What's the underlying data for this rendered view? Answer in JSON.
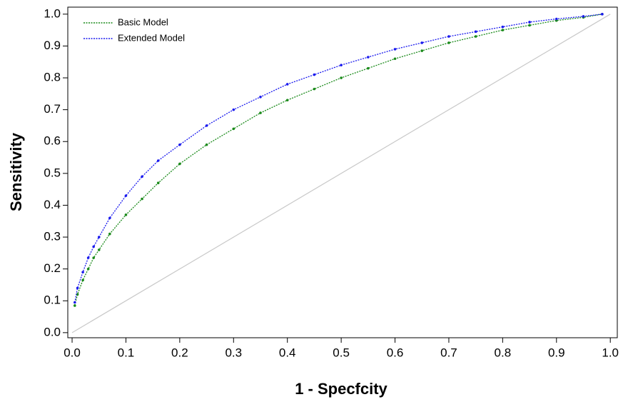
{
  "chart_data": {
    "type": "line",
    "x_label": "1 - Specfcity",
    "y_label": "Sensitivity",
    "x": [
      0.005,
      0.01,
      0.02,
      0.03,
      0.04,
      0.05,
      0.07,
      0.1,
      0.13,
      0.16,
      0.2,
      0.25,
      0.3,
      0.35,
      0.4,
      0.45,
      0.5,
      0.55,
      0.6,
      0.65,
      0.7,
      0.75,
      0.8,
      0.85,
      0.9,
      0.95,
      0.985
    ],
    "series": [
      {
        "name": "Basic Model",
        "color": "#1a8a1a",
        "values": [
          0.085,
          0.12,
          0.165,
          0.2,
          0.235,
          0.26,
          0.31,
          0.37,
          0.42,
          0.47,
          0.53,
          0.59,
          0.64,
          0.69,
          0.73,
          0.765,
          0.8,
          0.83,
          0.86,
          0.885,
          0.91,
          0.93,
          0.95,
          0.965,
          0.98,
          0.99,
          1.0
        ]
      },
      {
        "name": "Extended Model",
        "color": "#1a1aee",
        "values": [
          0.095,
          0.14,
          0.19,
          0.235,
          0.27,
          0.3,
          0.36,
          0.43,
          0.49,
          0.54,
          0.59,
          0.65,
          0.7,
          0.74,
          0.78,
          0.81,
          0.84,
          0.865,
          0.89,
          0.91,
          0.93,
          0.945,
          0.96,
          0.975,
          0.985,
          0.993,
          1.0
        ]
      }
    ],
    "diagonal": {
      "x": [
        0,
        1
      ],
      "y": [
        0,
        1
      ],
      "color": "#c8c8c8"
    },
    "xlim": [
      -0.008,
      1.013
    ],
    "ylim": [
      -0.016,
      1.022
    ],
    "xticks": [
      {
        "value": 0,
        "label": "0.0"
      },
      0.1,
      0.2,
      0.3,
      0.4,
      0.5,
      0.6,
      0.7,
      0.8,
      0.9,
      {
        "value": 1,
        "label": "1.0"
      }
    ],
    "yticks": [
      {
        "value": 0,
        "label": "0.0"
      },
      0.1,
      0.2,
      0.3,
      0.4,
      0.5,
      0.6,
      0.7,
      0.8,
      0.9,
      {
        "value": 1,
        "label": "1.0"
      }
    ],
    "legend": "top-left",
    "grid": false
  }
}
